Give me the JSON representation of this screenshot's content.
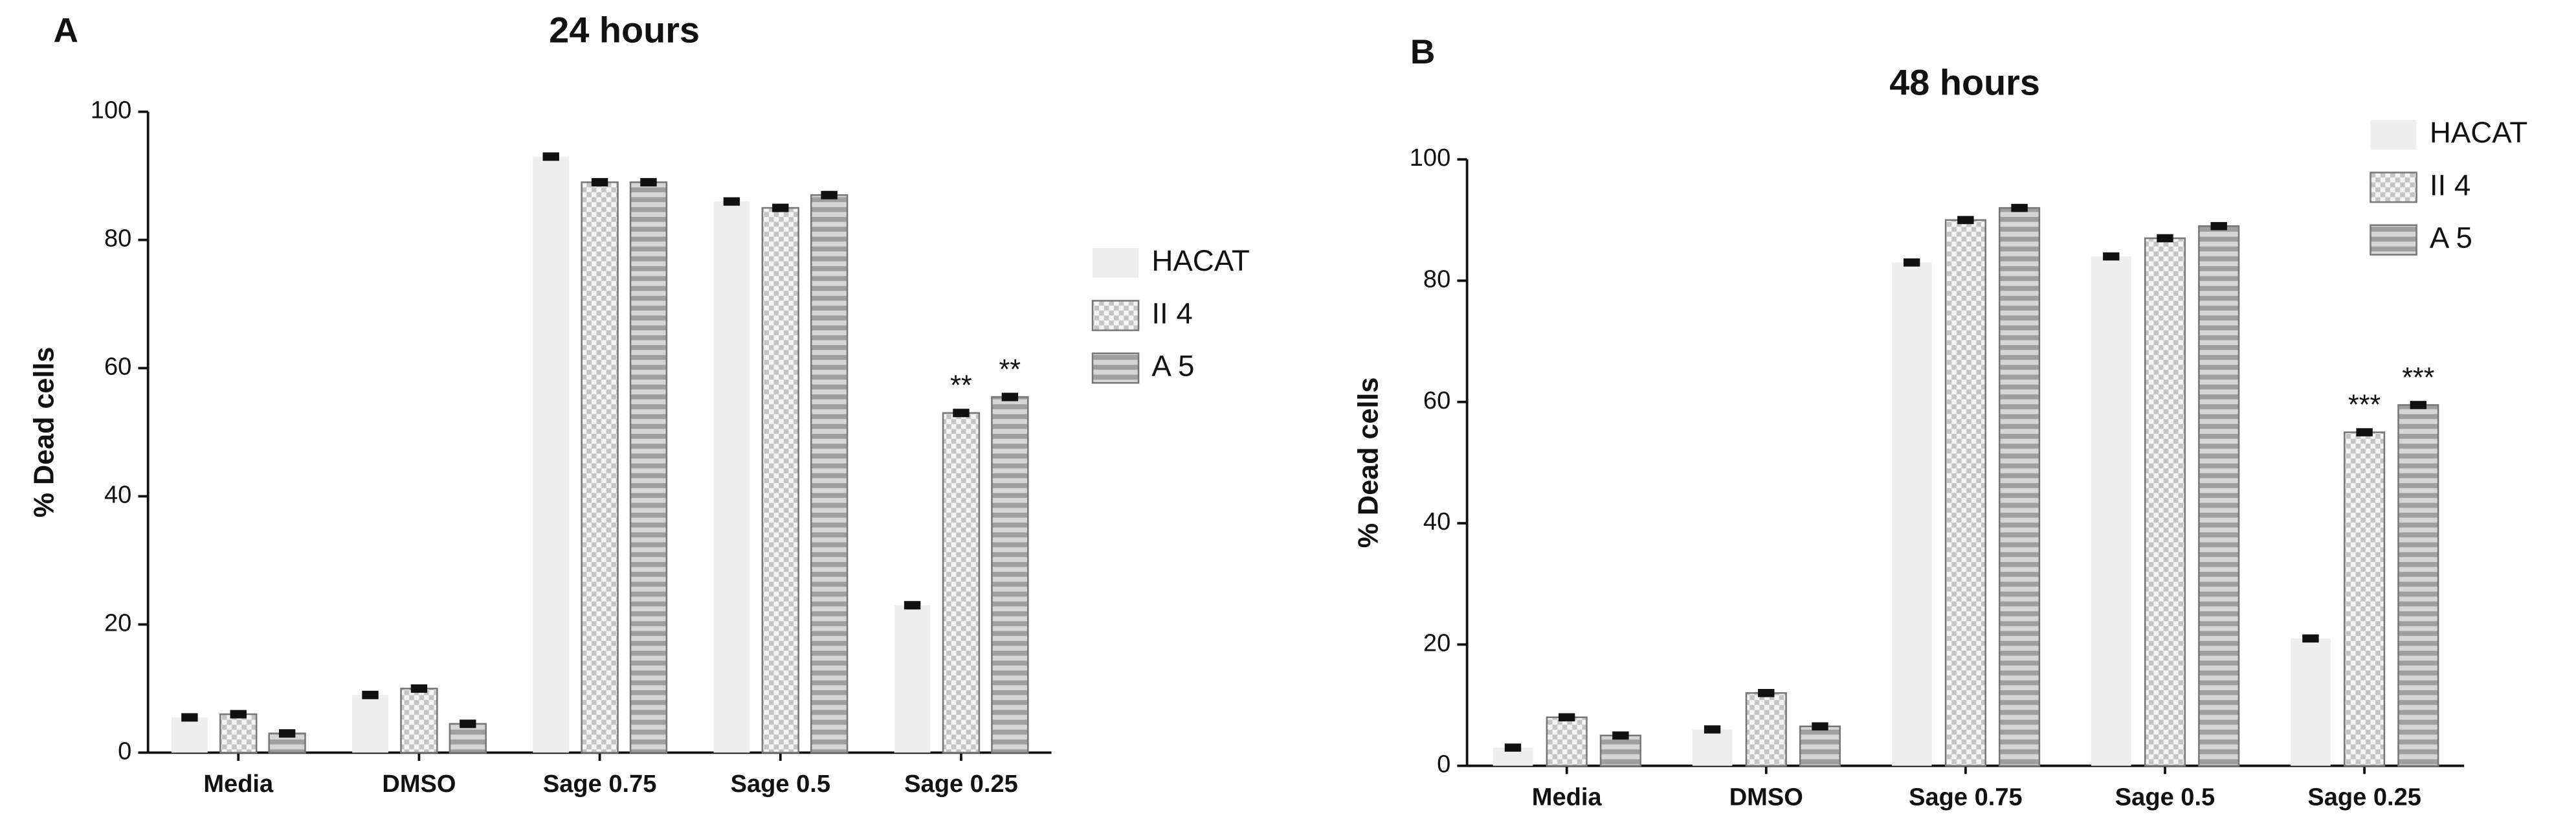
{
  "chart_data": [
    {
      "type": "bar",
      "panel_label": "A",
      "title": "24 hours",
      "y_label": "% Dead cells",
      "categories": [
        "Media",
        "DMSO",
        "Sage 0.75",
        "Sage 0.5",
        "Sage 0.25"
      ],
      "series": [
        {
          "name": "HACAT",
          "color": "#eeeeee",
          "pattern": "solid",
          "values": [
            5.5,
            9,
            93,
            86,
            23
          ],
          "errors": [
            0.4,
            0.4,
            0.4,
            0.4,
            0.4
          ]
        },
        {
          "name": "II 4",
          "color": "#c4c4c4",
          "pattern": "checker",
          "values": [
            6,
            10,
            89,
            85,
            53
          ],
          "errors": [
            0.4,
            0.4,
            0.4,
            0.4,
            0.4
          ]
        },
        {
          "name": "A 5",
          "color": "#9e9e9e",
          "pattern": "stripes",
          "values": [
            3,
            4.5,
            89,
            87,
            55.5
          ],
          "errors": [
            0.4,
            0.4,
            0.4,
            0.4,
            0.4
          ]
        }
      ],
      "annotations": [
        {
          "text": "**",
          "category": "Sage 0.25",
          "series": "II 4"
        },
        {
          "text": "**",
          "category": "Sage 0.25",
          "series": "A 5"
        }
      ],
      "ylim": [
        0,
        100
      ],
      "yticks": [
        0,
        20,
        40,
        60,
        80,
        100
      ],
      "legend": "right"
    },
    {
      "type": "bar",
      "panel_label": "B",
      "title": "48 hours",
      "y_label": "% Dead cells",
      "categories": [
        "Media",
        "DMSO",
        "Sage 0.75",
        "Sage 0.5",
        "Sage 0.25"
      ],
      "series": [
        {
          "name": "HACAT",
          "color": "#eeeeee",
          "pattern": "solid",
          "values": [
            3,
            6,
            83,
            84,
            21
          ],
          "errors": [
            0.4,
            0.4,
            0.4,
            0.4,
            0.4
          ]
        },
        {
          "name": "II 4",
          "color": "#c4c4c4",
          "pattern": "checker",
          "values": [
            8,
            12,
            90,
            87,
            55
          ],
          "errors": [
            0.4,
            0.4,
            0.4,
            0.4,
            0.4
          ]
        },
        {
          "name": "A 5",
          "color": "#9e9e9e",
          "pattern": "stripes",
          "values": [
            5,
            6.5,
            92,
            89,
            59.5
          ],
          "errors": [
            0.4,
            0.4,
            0.4,
            0.4,
            0.4
          ]
        }
      ],
      "annotations": [
        {
          "text": "***",
          "category": "Sage 0.25",
          "series": "II 4"
        },
        {
          "text": "***",
          "category": "Sage 0.25",
          "series": "A 5"
        }
      ],
      "ylim": [
        0,
        100
      ],
      "yticks": [
        0,
        20,
        40,
        60,
        80,
        100
      ],
      "legend": "top-right"
    }
  ]
}
